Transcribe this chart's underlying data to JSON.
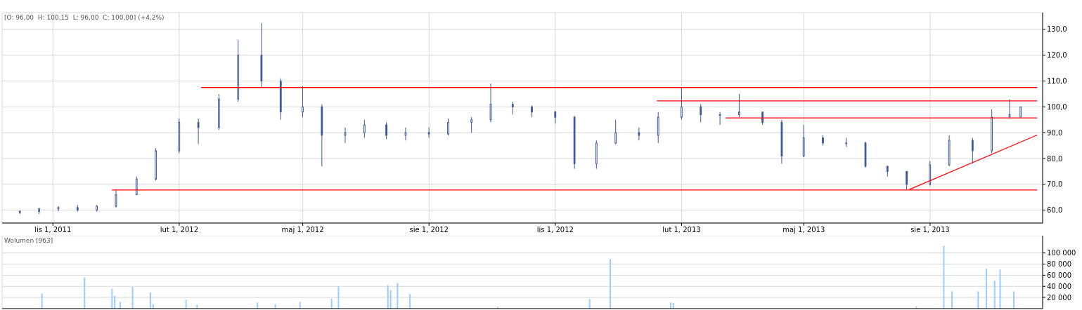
{
  "chart_data": [
    {
      "type": "candlestick",
      "color": "#3b5998",
      "annotations": [
        "[O: 96,00  H: 100,15  L: 96,00  C: 100,00] (+4,2%)"
      ],
      "x": [
        "2011-10-08",
        "2011-10-22",
        "2011-11-05",
        "2011-11-19",
        "2011-12-03",
        "2011-12-17",
        "2012-01-01",
        "2012-01-15",
        "2012-02-01",
        "2012-02-15",
        "2012-03-01",
        "2012-03-15",
        "2012-04-01",
        "2012-04-15",
        "2012-05-01",
        "2012-05-15",
        "2012-06-01",
        "2012-06-15",
        "2012-07-01",
        "2012-07-15",
        "2012-08-01",
        "2012-08-15",
        "2012-09-01",
        "2012-09-15",
        "2012-10-01",
        "2012-10-15",
        "2012-11-01",
        "2012-11-15",
        "2012-12-01",
        "2012-12-15",
        "2013-01-01",
        "2013-01-15",
        "2013-02-01",
        "2013-02-15",
        "2013-03-01",
        "2013-03-15",
        "2013-04-01",
        "2013-04-15",
        "2013-05-01",
        "2013-05-15",
        "2013-06-01",
        "2013-06-15",
        "2013-07-01",
        "2013-07-15",
        "2013-08-01",
        "2013-08-15",
        "2013-09-01",
        "2013-09-15",
        "2013-09-28",
        "2013-10-06"
      ],
      "ohlc": [
        [
          59,
          60,
          58.5,
          59.5
        ],
        [
          59.5,
          61,
          58.5,
          60.5
        ],
        [
          60.5,
          61.5,
          59.5,
          61
        ],
        [
          61,
          62,
          59.5,
          60
        ],
        [
          60,
          62,
          59.5,
          61.5
        ],
        [
          61.5,
          68,
          61,
          66
        ],
        [
          66,
          73,
          66,
          72
        ],
        [
          72,
          84,
          71.5,
          83
        ],
        [
          83,
          95.5,
          82,
          94
        ],
        [
          94,
          95.5,
          85.5,
          92
        ],
        [
          92,
          105,
          91,
          103
        ],
        [
          103,
          126,
          102,
          120
        ],
        [
          120,
          132.5,
          107.5,
          110
        ],
        [
          110,
          111,
          95,
          98
        ],
        [
          98,
          108,
          96,
          100
        ],
        [
          100,
          101,
          77,
          89
        ],
        [
          89,
          92,
          86,
          90
        ],
        [
          90,
          95,
          88,
          93
        ],
        [
          93,
          94,
          87.5,
          89
        ],
        [
          89,
          92,
          87,
          90
        ],
        [
          90,
          92,
          88,
          89.5
        ],
        [
          89.5,
          95.5,
          89,
          94
        ],
        [
          94,
          96,
          90,
          95
        ],
        [
          95,
          109,
          94,
          101
        ],
        [
          101,
          102,
          97,
          100
        ],
        [
          100,
          100.5,
          96,
          98
        ],
        [
          98,
          98.5,
          93.5,
          96
        ],
        [
          96,
          96.5,
          76,
          78
        ],
        [
          78,
          87,
          76,
          86
        ],
        [
          86,
          95,
          85.5,
          90
        ],
        [
          90,
          92,
          87,
          89
        ],
        [
          89,
          98,
          86,
          96
        ],
        [
          96,
          107.5,
          95,
          100
        ],
        [
          100,
          101,
          94,
          97
        ],
        [
          97,
          98,
          93,
          97
        ],
        [
          97,
          105,
          96,
          98
        ],
        [
          98,
          98,
          93,
          94
        ],
        [
          94,
          95,
          78,
          81
        ],
        [
          81,
          93,
          80.5,
          88
        ],
        [
          88,
          89,
          85,
          86
        ],
        [
          86,
          88,
          84.5,
          86
        ],
        [
          86,
          86.5,
          76.5,
          77
        ],
        [
          77,
          77,
          73,
          75
        ],
        [
          75,
          75,
          68,
          70
        ],
        [
          70,
          79,
          69.5,
          77.5
        ],
        [
          77.5,
          89,
          77,
          87
        ],
        [
          87,
          88,
          78,
          83
        ],
        [
          83,
          99,
          82,
          96
        ],
        [
          96,
          103,
          95.5,
          97
        ],
        [
          96,
          100.15,
          96,
          100
        ]
      ],
      "series": [
        {
          "type": "line",
          "color": "#ff0000",
          "x": [
            "2012-02-17",
            "2013-10-18"
          ],
          "values": [
            107.5,
            107.5
          ]
        },
        {
          "type": "line",
          "color": "#ff0000",
          "x": [
            "2011-12-14",
            "2013-10-18"
          ],
          "values": [
            67.8,
            67.8
          ]
        },
        {
          "type": "line",
          "color": "#ff0000",
          "x": [
            "2013-01-14",
            "2013-10-18"
          ],
          "values": [
            102.3,
            102.3
          ]
        },
        {
          "type": "line",
          "color": "#ff0000",
          "x": [
            "2013-03-05",
            "2013-10-18"
          ],
          "values": [
            95.7,
            95.7
          ]
        },
        {
          "type": "line",
          "color": "#ff0000",
          "x": [
            "2013-07-17",
            "2013-10-18"
          ],
          "values": [
            68,
            89.1
          ]
        }
      ],
      "xlim": [
        "2011-09-25",
        "2013-10-22"
      ],
      "xticks": [
        {
          "value": "2011-11-01",
          "label": "lis 1, 2011"
        },
        {
          "value": "2012-02-01",
          "label": "lut 1, 2012"
        },
        {
          "value": "2012-05-01",
          "label": "maj 1, 2012"
        },
        {
          "value": "2012-08-01",
          "label": "sie 1, 2012"
        },
        {
          "value": "2012-11-01",
          "label": "lis 1, 2012"
        },
        {
          "value": "2013-02-01",
          "label": "lut 1, 2013"
        },
        {
          "value": "2013-05-01",
          "label": "maj 1, 2013"
        },
        {
          "value": "2013-08-01",
          "label": "sie 1, 2013"
        }
      ],
      "ylim": [
        55,
        136.5
      ],
      "yticks": [
        {
          "value": 60,
          "label": "60,0"
        },
        {
          "value": 70,
          "label": "70,0"
        },
        {
          "value": 80,
          "label": "80,0"
        },
        {
          "value": 90,
          "label": "90,0"
        },
        {
          "value": 100,
          "label": "100,0"
        },
        {
          "value": 110,
          "label": "110,0"
        },
        {
          "value": 120,
          "label": "120,0"
        },
        {
          "value": 130,
          "label": "130,0"
        }
      ],
      "grid": true,
      "legend": false
    },
    {
      "type": "bar",
      "color": "#99ccff",
      "annotations": [
        "Wolumen [963]"
      ],
      "x": [
        "2011-10-24",
        "2011-11-24",
        "2011-12-14",
        "2011-12-16",
        "2011-12-20",
        "2011-12-29",
        "2012-01-11",
        "2012-01-13",
        "2012-02-06",
        "2012-02-14",
        "2012-03-29",
        "2012-04-11",
        "2012-04-29",
        "2012-05-22",
        "2012-05-27",
        "2012-07-02",
        "2012-07-04",
        "2012-07-09",
        "2012-07-18",
        "2012-09-20",
        "2012-11-26",
        "2012-12-11",
        "2013-01-24",
        "2013-01-26",
        "2013-07-22",
        "2013-08-11",
        "2013-08-17",
        "2013-09-05",
        "2013-09-11",
        "2013-09-17",
        "2013-09-21",
        "2013-10-01"
      ],
      "values": [
        27000,
        56000,
        36000,
        23000,
        12000,
        39000,
        29000,
        8000,
        16000,
        7000,
        11000,
        8000,
        12000,
        18000,
        40000,
        42000,
        33000,
        46000,
        26000,
        3000,
        17000,
        89000,
        11000,
        10000,
        4000,
        113000,
        31000,
        31000,
        72000,
        50000,
        70000,
        31000
      ],
      "xlim": [
        "2011-09-25",
        "2013-10-22"
      ],
      "xticks": [
        "2011-11-01",
        "2012-02-01",
        "2012-05-01",
        "2012-08-01",
        "2012-11-01",
        "2013-02-01",
        "2013-05-01",
        "2013-08-01"
      ],
      "ylim": [
        0,
        131000
      ],
      "yticks": [
        {
          "value": 20000,
          "label": "20 000"
        },
        {
          "value": 40000,
          "label": "40 000"
        },
        {
          "value": 60000,
          "label": "60 000"
        },
        {
          "value": 80000,
          "label": "80 000"
        },
        {
          "value": 100000,
          "label": "100 000"
        }
      ],
      "grid": true,
      "legend": false,
      "tick_labels": "y"
    }
  ]
}
